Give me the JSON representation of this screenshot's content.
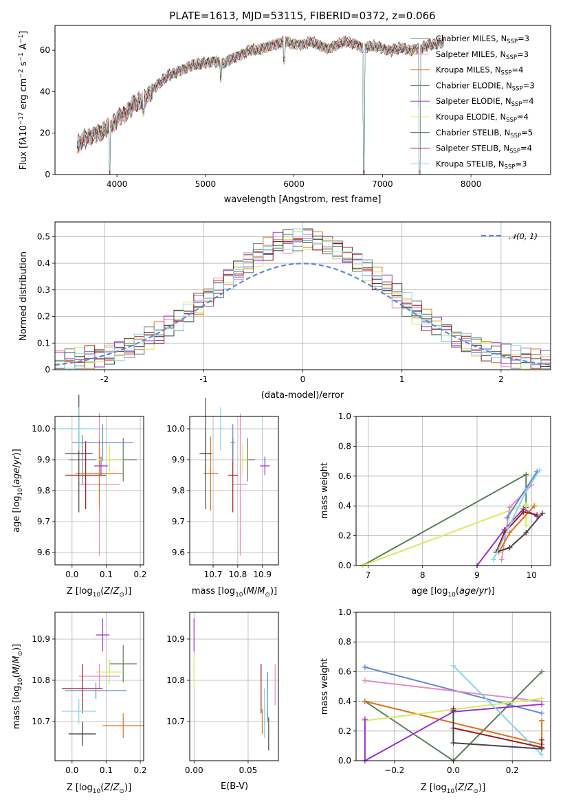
{
  "chart_data": [
    {
      "type": "line",
      "title": "PLATE=1613, MJD=53115, FIBERID=0372, z=0.066",
      "xlabel": "wavelength [Angstrom, rest frame]",
      "ylabel": "Flux [f_λ10^-17 erg cm^-2 s^-1 A^-1]",
      "xlim": [
        3300,
        8900
      ],
      "ylim": [
        0,
        72
      ],
      "xticks": [
        4000,
        5000,
        6000,
        7000,
        8000
      ],
      "yticks": [
        0,
        20,
        40,
        60
      ],
      "legend_position": "right",
      "series": [
        {
          "name": "Chabrier MILES, N_SSP=3",
          "color": "#708090"
        },
        {
          "name": "Salpeter MILES, N_SSP=3",
          "color": "#e78ac3"
        },
        {
          "name": "Kroupa MILES, N_SSP=4",
          "color": "#d9751a"
        },
        {
          "name": "Chabrier ELODIE, N_SSP=3",
          "color": "#5a7d5a"
        },
        {
          "name": "Salpeter ELODIE, N_SSP=4",
          "color": "#9932cc"
        },
        {
          "name": "Kroupa ELODIE, N_SSP=4",
          "color": "#d4ec5a"
        },
        {
          "name": "Chabrier STELIB, N_SSP=5",
          "color": "#444444"
        },
        {
          "name": "Salpeter STELIB, N_SSP=4",
          "color": "#a01818"
        },
        {
          "name": "Kroupa STELIB, N_SSP=3",
          "color": "#80d8e8"
        }
      ],
      "spectrum_anchor_x": [
        3550,
        3700,
        3850,
        3950,
        4000,
        4100,
        4200,
        4300,
        4400,
        4500,
        4600,
        4700,
        4800,
        4900,
        5000,
        5100,
        5200,
        5300,
        5400,
        5500,
        5600,
        5700,
        5800,
        5900,
        6000,
        6100,
        6200,
        6300,
        6400,
        6500,
        6600,
        6700,
        6800,
        6900,
        7000,
        7100,
        7200,
        7300,
        7400,
        7500,
        7600,
        7700
      ],
      "spectrum_anchor_y": [
        14,
        19,
        21,
        24,
        27,
        30,
        34,
        36,
        41,
        45,
        48,
        50,
        52,
        53,
        54,
        55,
        53,
        56,
        58,
        60,
        60,
        62,
        63,
        64,
        63,
        63,
        64,
        62,
        61,
        63,
        64,
        63,
        61,
        62,
        61,
        60,
        61,
        60,
        61,
        62,
        63,
        64
      ],
      "dips": [
        {
          "x": 3920,
          "y": 0
        },
        {
          "x": 4300,
          "y": 30
        },
        {
          "x": 5175,
          "y": 46
        },
        {
          "x": 5890,
          "y": 55
        },
        {
          "x": 6790,
          "y": 0
        },
        {
          "x": 7420,
          "y": 0
        }
      ]
    },
    {
      "type": "histogram",
      "xlabel": "(data-model)/error",
      "ylabel": "Normed distribution",
      "xlim": [
        -2.5,
        2.5
      ],
      "ylim": [
        0,
        0.555
      ],
      "xticks": [
        -2,
        -1,
        0,
        1,
        2
      ],
      "yticks": [
        0.0,
        0.1,
        0.2,
        0.3,
        0.4,
        0.5
      ],
      "legend": "N(0,1)",
      "legend_position": "top-right",
      "bins": 50,
      "bin_range": [
        -2.5,
        2.5
      ],
      "normal_curve": {
        "mean": 0,
        "sigma": 1,
        "color": "#5b8ad8"
      }
    },
    {
      "type": "errorbar",
      "xlabel": "Z [log10(Z/Z☉)]",
      "ylabel": "age [log10(age/yr)]",
      "xlim": [
        -0.05,
        0.21
      ],
      "ylim": [
        9.56,
        10.04
      ],
      "xticks": [
        "0.0",
        "0.1",
        "0.2"
      ],
      "yticks": [
        "9.6",
        "9.7",
        "9.8",
        "9.9",
        "10.0"
      ],
      "points": [
        {
          "color": "#708090",
          "x": 0.03,
          "xerr": 0.04,
          "y": 9.9,
          "yerr": 0.08
        },
        {
          "color": "#e78ac3",
          "x": 0.08,
          "xerr": 0.06,
          "y": 9.82,
          "yerr": 0.23
        },
        {
          "color": "#d9751a",
          "x": 0.08,
          "xerr": 0.07,
          "y": 9.855,
          "yerr": 0.11
        },
        {
          "color": "#5a7d5a",
          "x": 0.15,
          "xerr": 0.04,
          "y": 9.9,
          "yerr": 0.07
        },
        {
          "color": "#9932cc",
          "x": 0.085,
          "xerr": 0.02,
          "y": 9.88,
          "yerr": 0.03
        },
        {
          "color": "#d4ec5a",
          "x": 0.11,
          "xerr": 0.04,
          "y": 9.9,
          "yerr": 0.05
        },
        {
          "color": "#444444",
          "x": 0.02,
          "xerr": 0.04,
          "y": 9.92,
          "yerr": 0.19
        },
        {
          "color": "#a01818",
          "x": 0.04,
          "xerr": 0.06,
          "y": 9.85,
          "yerr": 0.11
        },
        {
          "color": "#5b8ad8",
          "x": 0.09,
          "xerr": 0.09,
          "y": 9.955,
          "yerr": 0.06
        },
        {
          "color": "#80d8e8",
          "x": 0.02,
          "xerr": 0.06,
          "y": 10.0,
          "yerr": 0.07
        }
      ]
    },
    {
      "type": "errorbar",
      "xlabel": "mass [log10(M/M☉)]",
      "ylabel": "",
      "xlim": [
        10.605,
        10.965
      ],
      "ylim": [
        9.56,
        10.04
      ],
      "xticks": [
        "10.7",
        "10.8",
        "10.9"
      ],
      "yticks": [
        "9.6",
        "9.7",
        "9.8",
        "9.9",
        "10.0"
      ],
      "points": [
        {
          "color": "#708090",
          "x": 10.67,
          "xerr": 0.02,
          "y": 9.92,
          "yerr": 0.08
        },
        {
          "color": "#e78ac3",
          "x": 10.81,
          "xerr": 0.03,
          "y": 9.82,
          "yerr": 0.23
        },
        {
          "color": "#d9751a",
          "x": 10.69,
          "xerr": 0.03,
          "y": 9.855,
          "yerr": 0.12
        },
        {
          "color": "#5a7d5a",
          "x": 10.84,
          "xerr": 0.03,
          "y": 9.9,
          "yerr": 0.07
        },
        {
          "color": "#9932cc",
          "x": 10.91,
          "xerr": 0.02,
          "y": 9.88,
          "yerr": 0.03
        },
        {
          "color": "#d4ec5a",
          "x": 10.82,
          "xerr": 0.02,
          "y": 9.9,
          "yerr": 0.05
        },
        {
          "color": "#444444",
          "x": 10.67,
          "xerr": 0.025,
          "y": 9.92,
          "yerr": 0.18
        },
        {
          "color": "#a01818",
          "x": 10.78,
          "xerr": 0.02,
          "y": 9.85,
          "yerr": 0.12
        },
        {
          "color": "#5b8ad8",
          "x": 10.78,
          "xerr": 0.01,
          "y": 9.955,
          "yerr": 0.06
        },
        {
          "color": "#80d8e8",
          "x": 10.73,
          "xerr": 0.01,
          "y": 10.0,
          "yerr": 0.07
        }
      ]
    },
    {
      "type": "line",
      "xlabel": "age [log10(age/yr)]",
      "ylabel": "mass weight",
      "xlim": [
        6.78,
        10.35
      ],
      "ylim": [
        0,
        1
      ],
      "xticks": [
        "7",
        "8",
        "9",
        "10"
      ],
      "yticks": [
        "0.0",
        "0.2",
        "0.4",
        "0.6",
        "0.8",
        "1.0"
      ],
      "series": [
        {
          "color": "#5a7d5a",
          "x": [
            6.9,
            9.9,
            9.9
          ],
          "y": [
            0.0,
            0.61,
            0.39
          ]
        },
        {
          "color": "#d4ec5a",
          "x": [
            6.9,
            9.9,
            9.9,
            9.9
          ],
          "y": [
            0.0,
            0.41,
            0.32,
            0.27
          ]
        },
        {
          "color": "#9932cc",
          "x": [
            9.0,
            9.5,
            9.85,
            10.1
          ],
          "y": [
            0.0,
            0.24,
            0.38,
            0.33
          ]
        },
        {
          "color": "#e78ac3",
          "x": [
            9.45,
            9.6,
            10.0
          ],
          "y": [
            0.04,
            0.39,
            0.54
          ]
        },
        {
          "color": "#d9751a",
          "x": [
            9.4,
            9.6,
            10.05
          ],
          "y": [
            0.09,
            0.22,
            0.4
          ]
        },
        {
          "color": "#a01818",
          "x": [
            9.35,
            9.5,
            9.85,
            10.1
          ],
          "y": [
            0.09,
            0.22,
            0.36,
            0.34
          ]
        },
        {
          "color": "#444444",
          "x": [
            9.35,
            9.6,
            9.9,
            10.2
          ],
          "y": [
            0.09,
            0.12,
            0.22,
            0.35
          ]
        },
        {
          "color": "#5b8ad8",
          "x": [
            9.55,
            10.1
          ],
          "y": [
            0.32,
            0.63
          ]
        },
        {
          "color": "#80d8e8",
          "x": [
            9.3,
            9.9,
            10.15
          ],
          "y": [
            0.04,
            0.5,
            0.64
          ]
        }
      ]
    },
    {
      "type": "errorbar",
      "xlabel": "Z [log10(Z/Z☉)]",
      "ylabel": "mass [log10(M/M☉)]",
      "xlim": [
        -0.05,
        0.21
      ],
      "ylim": [
        10.605,
        10.965
      ],
      "xticks": [
        "0.0",
        "0.1",
        "0.2"
      ],
      "yticks": [
        "10.7",
        "10.8",
        "10.9"
      ],
      "points": [
        {
          "color": "#708090",
          "x": 0.03,
          "xerr": 0.04,
          "y": 10.67,
          "yerr": 0.02
        },
        {
          "color": "#e78ac3",
          "x": 0.08,
          "xerr": 0.06,
          "y": 10.81,
          "yerr": 0.03
        },
        {
          "color": "#d9751a",
          "x": 0.15,
          "xerr": 0.06,
          "y": 10.69,
          "yerr": 0.03
        },
        {
          "color": "#5a7d5a",
          "x": 0.15,
          "xerr": 0.04,
          "y": 10.84,
          "yerr": 0.045
        },
        {
          "color": "#9932cc",
          "x": 0.09,
          "xerr": 0.02,
          "y": 10.91,
          "yerr": 0.04
        },
        {
          "color": "#d4ec5a",
          "x": 0.11,
          "xerr": 0.04,
          "y": 10.82,
          "yerr": 0.03
        },
        {
          "color": "#444444",
          "x": 0.03,
          "xerr": 0.04,
          "y": 10.67,
          "yerr": 0.03
        },
        {
          "color": "#a01818",
          "x": 0.03,
          "xerr": 0.06,
          "y": 10.78,
          "yerr": 0.06
        },
        {
          "color": "#5b8ad8",
          "x": 0.07,
          "xerr": 0.09,
          "y": 10.775,
          "yerr": 0.02
        },
        {
          "color": "#80d8e8",
          "x": 0.02,
          "xerr": 0.05,
          "y": 10.725,
          "yerr": 0.03
        }
      ]
    },
    {
      "type": "errorbar",
      "xlabel": "E(B-V)",
      "ylabel": "",
      "xlim": [
        -0.004,
        0.078
      ],
      "ylim": [
        10.605,
        10.965
      ],
      "xticks": [
        "0.00",
        "0.05"
      ],
      "yticks": [
        "10.7",
        "10.8",
        "10.9"
      ],
      "points": [
        {
          "color": "#9932cc",
          "x": 0.0,
          "xerr": 0,
          "y": 10.91,
          "yerr": 0.04
        },
        {
          "color": "#d4ec5a",
          "x": 0.0,
          "xerr": 0,
          "y": 10.82,
          "yerr": 0.04
        },
        {
          "color": "#a01818",
          "x": 0.062,
          "xerr": 0,
          "y": 10.78,
          "yerr": 0.06
        },
        {
          "color": "#d9751a",
          "x": 0.063,
          "xerr": 0,
          "y": 10.7,
          "yerr": 0.03
        },
        {
          "color": "#80d8e8",
          "x": 0.065,
          "xerr": 0,
          "y": 10.72,
          "yerr": 0.06
        },
        {
          "color": "#5b8ad8",
          "x": 0.068,
          "xerr": 0,
          "y": 10.76,
          "yerr": 0.06
        },
        {
          "color": "#444444",
          "x": 0.069,
          "xerr": 0,
          "y": 10.67,
          "yerr": 0.04
        },
        {
          "color": "#e78ac3",
          "x": 0.075,
          "xerr": 0,
          "y": 10.79,
          "yerr": 0.05
        }
      ]
    },
    {
      "type": "line",
      "xlabel": "Z [log10(Z/Z☉)]",
      "ylabel": "mass weight",
      "xlim": [
        -0.33,
        0.33
      ],
      "ylim": [
        0,
        1
      ],
      "xticks": [
        "−0.2",
        "0.0",
        "0.2"
      ],
      "yticks": [
        "0.0",
        "0.2",
        "0.4",
        "0.6",
        "0.8",
        "1.0"
      ],
      "series": [
        {
          "color": "#5b8ad8",
          "x": [
            -0.3,
            0.3
          ],
          "y": [
            0.63,
            0.32
          ]
        },
        {
          "color": "#e78ac3",
          "x": [
            -0.3,
            0.3
          ],
          "y": [
            0.54,
            0.4
          ]
        },
        {
          "color": "#5a7d5a",
          "x": [
            -0.3,
            0.0,
            0.3
          ],
          "y": [
            0.4,
            0.0,
            0.6
          ]
        },
        {
          "color": "#d9751a",
          "x": [
            -0.3,
            0.3,
            0.3
          ],
          "y": [
            0.4,
            0.11,
            0.27
          ]
        },
        {
          "color": "#d4ec5a",
          "x": [
            -0.3,
            0.3
          ],
          "y": [
            0.27,
            0.42
          ]
        },
        {
          "color": "#9932cc",
          "x": [
            -0.3,
            -0.3,
            0.0,
            0.3
          ],
          "y": [
            0.28,
            0.0,
            0.33,
            0.38
          ]
        },
        {
          "color": "#80d8e8",
          "x": [
            0.0,
            0.3
          ],
          "y": [
            0.64,
            0.04
          ]
        },
        {
          "color": "#a01818",
          "x": [
            0.0,
            0.0,
            0.3,
            0.3
          ],
          "y": [
            0.35,
            0.22,
            0.09,
            0.14
          ]
        },
        {
          "color": "#444444",
          "x": [
            0.0,
            0.0,
            0.3
          ],
          "y": [
            0.34,
            0.12,
            0.08
          ]
        }
      ]
    }
  ]
}
